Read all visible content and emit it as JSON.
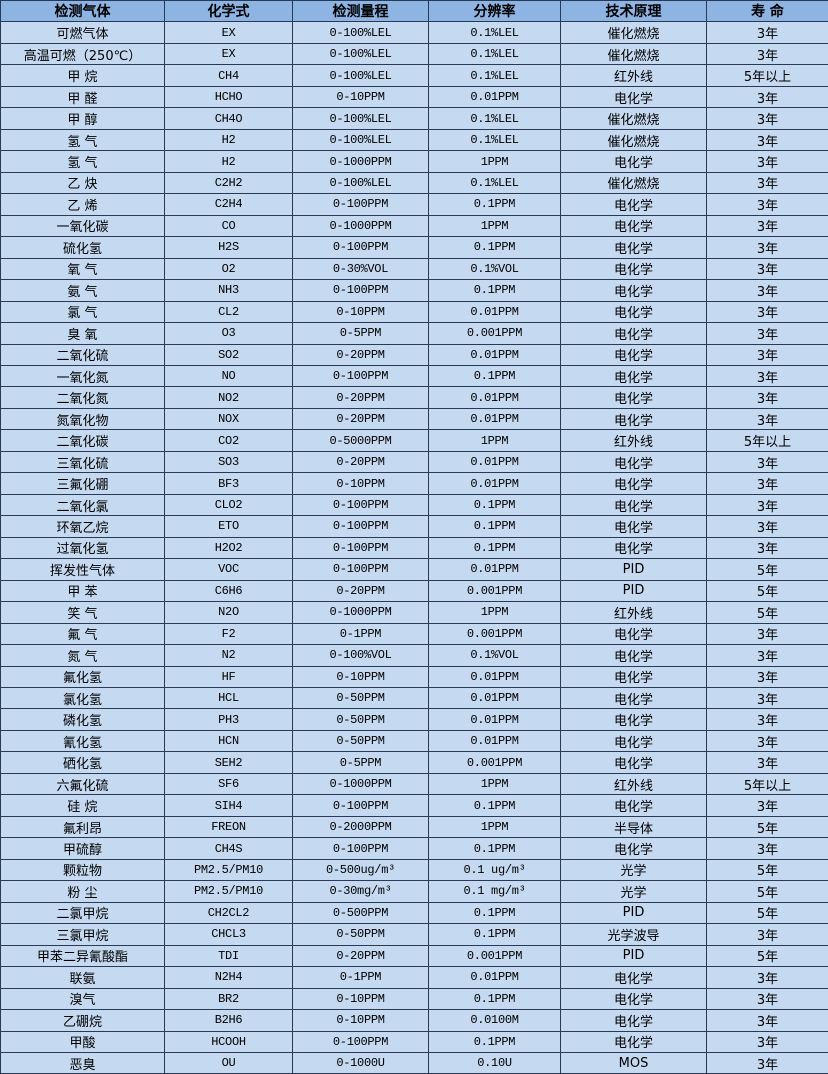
{
  "colors": {
    "header_bg": "#8db4e2",
    "row_bg": "#c5d9f1",
    "border": "#2a3a55"
  },
  "table": {
    "headers": [
      "检测气体",
      "化学式",
      "检测量程",
      "分辨率",
      "技术原理",
      "寿  命"
    ],
    "rows": [
      [
        "可燃气体",
        "EX",
        "0-100%LEL",
        "0.1%LEL",
        "催化燃烧",
        "3年"
      ],
      [
        "高温可燃（250℃）",
        "EX",
        "0-100%LEL",
        "0.1%LEL",
        "催化燃烧",
        "3年"
      ],
      [
        "甲 烷",
        "CH4",
        "0-100%LEL",
        "0.1%LEL",
        "红外线",
        "5年以上"
      ],
      [
        "甲 醛",
        "HCHO",
        "0-10PPM",
        "0.01PPM",
        "电化学",
        "3年"
      ],
      [
        "甲 醇",
        "CH4O",
        "0-100%LEL",
        "0.1%LEL",
        "催化燃烧",
        "3年"
      ],
      [
        "氢 气",
        "H2",
        "0-100%LEL",
        "0.1%LEL",
        "催化燃烧",
        "3年"
      ],
      [
        "氢 气",
        "H2",
        "0-1000PPM",
        "1PPM",
        "电化学",
        "3年"
      ],
      [
        "乙 炔",
        "C2H2",
        "0-100%LEL",
        "0.1%LEL",
        "催化燃烧",
        "3年"
      ],
      [
        "乙 烯",
        "C2H4",
        "0-100PPM",
        "0.1PPM",
        "电化学",
        "3年"
      ],
      [
        "一氧化碳",
        "CO",
        "0-1000PPM",
        "1PPM",
        "电化学",
        "3年"
      ],
      [
        "硫化氢",
        "H2S",
        "0-100PPM",
        "0.1PPM",
        "电化学",
        "3年"
      ],
      [
        "氧 气",
        "O2",
        "0-30%VOL",
        "0.1%VOL",
        "电化学",
        "3年"
      ],
      [
        "氨 气",
        "NH3",
        "0-100PPM",
        "0.1PPM",
        "电化学",
        "3年"
      ],
      [
        "氯 气",
        "CL2",
        "0-10PPM",
        "0.01PPM",
        "电化学",
        "3年"
      ],
      [
        "臭 氧",
        "O3",
        "0-5PPM",
        "0.001PPM",
        "电化学",
        "3年"
      ],
      [
        "二氧化硫",
        "SO2",
        "0-20PPM",
        "0.01PPM",
        "电化学",
        "3年"
      ],
      [
        "一氧化氮",
        "NO",
        "0-100PPM",
        "0.1PPM",
        "电化学",
        "3年"
      ],
      [
        "二氧化氮",
        "NO2",
        "0-20PPM",
        "0.01PPM",
        "电化学",
        "3年"
      ],
      [
        "氮氧化物",
        "NOX",
        "0-20PPM",
        "0.01PPM",
        "电化学",
        "3年"
      ],
      [
        "二氧化碳",
        "CO2",
        "0-5000PPM",
        "1PPM",
        "红外线",
        "5年以上"
      ],
      [
        "三氧化硫",
        "SO3",
        "0-20PPM",
        "0.01PPM",
        "电化学",
        "3年"
      ],
      [
        "三氟化硼",
        "BF3",
        "0-10PPM",
        "0.01PPM",
        "电化学",
        "3年"
      ],
      [
        "二氧化氯",
        "CLO2",
        "0-100PPM",
        "0.1PPM",
        "电化学",
        "3年"
      ],
      [
        "环氧乙烷",
        "ETO",
        "0-100PPM",
        "0.1PPM",
        "电化学",
        "3年"
      ],
      [
        "过氧化氢",
        "H2O2",
        "0-100PPM",
        "0.1PPM",
        "电化学",
        "3年"
      ],
      [
        "挥发性气体",
        "VOC",
        "0-100PPM",
        "0.01PPM",
        "PID",
        "5年"
      ],
      [
        "甲 苯",
        "C6H6",
        "0-20PPM",
        "0.001PPM",
        "PID",
        "5年"
      ],
      [
        "笑 气",
        "N2O",
        "0-1000PPM",
        "1PPM",
        "红外线",
        "5年"
      ],
      [
        "氟 气",
        "F2",
        "0-1PPM",
        "0.001PPM",
        "电化学",
        "3年"
      ],
      [
        "氮 气",
        "N2",
        "0-100%VOL",
        "0.1%VOL",
        "电化学",
        "3年"
      ],
      [
        "氟化氢",
        "HF",
        "0-10PPM",
        "0.01PPM",
        "电化学",
        "3年"
      ],
      [
        "氯化氢",
        "HCL",
        "0-50PPM",
        "0.01PPM",
        "电化学",
        "3年"
      ],
      [
        "磷化氢",
        "PH3",
        "0-50PPM",
        "0.01PPM",
        "电化学",
        "3年"
      ],
      [
        "氰化氢",
        "HCN",
        "0-50PPM",
        "0.01PPM",
        "电化学",
        "3年"
      ],
      [
        "硒化氢",
        "SEH2",
        "0-5PPM",
        "0.001PPM",
        "电化学",
        "3年"
      ],
      [
        "六氟化硫",
        "SF6",
        "0-1000PPM",
        "1PPM",
        "红外线",
        "5年以上"
      ],
      [
        "硅 烷",
        "SIH4",
        "0-100PPM",
        "0.1PPM",
        "电化学",
        "3年"
      ],
      [
        "氟利昂",
        "FREON",
        "0-2000PPM",
        "1PPM",
        "半导体",
        "5年"
      ],
      [
        "甲硫醇",
        "CH4S",
        "0-100PPM",
        "0.1PPM",
        "电化学",
        "3年"
      ],
      [
        "颗粒物",
        "PM2.5/PM10",
        "0-500ug/m³",
        "0.1 ug/m³",
        "光学",
        "5年"
      ],
      [
        "粉 尘",
        "PM2.5/PM10",
        "0-30mg/m³",
        "0.1 mg/m³",
        "光学",
        "5年"
      ],
      [
        "二氯甲烷",
        "CH2CL2",
        "0-500PPM",
        "0.1PPM",
        "PID",
        "5年"
      ],
      [
        "三氯甲烷",
        "CHCL3",
        "0-50PPM",
        "0.1PPM",
        "光学波导",
        "3年"
      ],
      [
        "甲苯二异氰酸酯",
        "TDI",
        "0-20PPM",
        "0.001PPM",
        "PID",
        "5年"
      ],
      [
        "联氨",
        "N2H4",
        "0-1PPM",
        "0.01PPM",
        "电化学",
        "3年"
      ],
      [
        "溴气",
        "BR2",
        "0-10PPM",
        "0.1PPM",
        "电化学",
        "3年"
      ],
      [
        "乙硼烷",
        "B2H6",
        "0-10PPM",
        "0.0100M",
        "电化学",
        "3年"
      ],
      [
        "甲酸",
        "HCOOH",
        "0-100PPM",
        "0.1PPM",
        "电化学",
        "3年"
      ],
      [
        "恶臭",
        "OU",
        "0-1000U",
        "0.10U",
        "MOS",
        "3年"
      ]
    ]
  }
}
